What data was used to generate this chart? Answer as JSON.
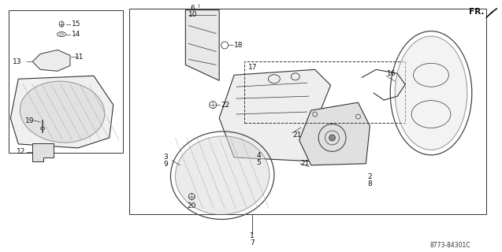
{
  "bg_color": "#ffffff",
  "line_color": "#333333",
  "label_color": "#111111",
  "diagram_number": "8773-84301C",
  "fr_label": "FR.",
  "figsize": [
    6.37,
    3.2
  ],
  "dpi": 100
}
